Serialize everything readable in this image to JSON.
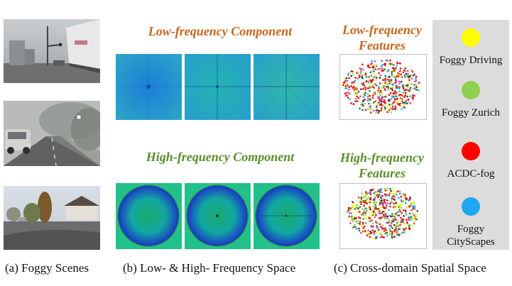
{
  "figure": {
    "panel_b": {
      "low_heading": "Low-frequency Component",
      "high_heading": "High-frequency Component"
    },
    "panel_c": {
      "low_heading_line1": "Low-frequency",
      "low_heading_line2": "Features",
      "high_heading_line1": "High-frequency",
      "high_heading_line2": "Features"
    },
    "legend": [
      {
        "label": "Foggy Driving",
        "color": "#ffff00"
      },
      {
        "label": "Foggy Zurich",
        "color": "#8fd14f"
      },
      {
        "label": "ACDC-fog",
        "color": "#ff0000"
      },
      {
        "label": "Foggy CityScapes",
        "line1": "Foggy",
        "line2": "CityScapes",
        "color": "#1ea7f0"
      }
    ],
    "captions": {
      "a": "(a) Foggy Scenes",
      "b": "(b) Low- & High- Frequency Space",
      "c": "(c) Cross-domain Spatial Space"
    }
  },
  "colors": {
    "low_heading": "#c8651c",
    "high_heading": "#5b8c2a",
    "legend_background": "#dcdcdc"
  }
}
